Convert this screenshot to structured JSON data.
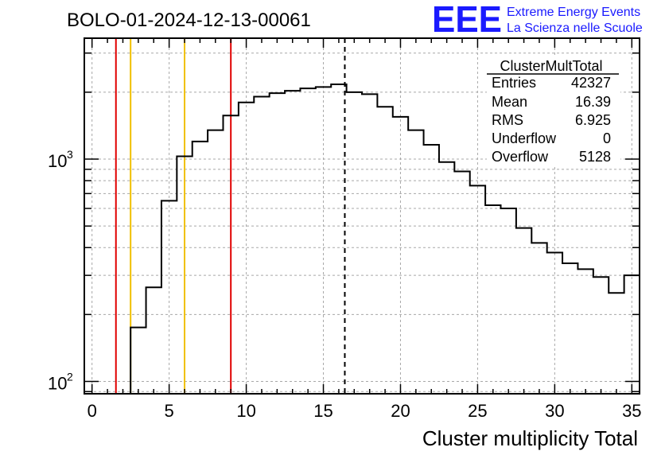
{
  "header": {
    "run_title": "BOLO-01-2024-12-13-00061",
    "logo_text": "EEE",
    "logo_line1": "Extreme Energy Events",
    "logo_line2": "La Scienza nelle Scuole",
    "logo_color": "#1a1aff"
  },
  "stats_box": {
    "title": "ClusterMultTotal",
    "rows": [
      {
        "label": "Entries",
        "value": "42327"
      },
      {
        "label": "Mean",
        "value": "16.39"
      },
      {
        "label": "RMS",
        "value": "6.925"
      },
      {
        "label": "Underflow",
        "value": "0"
      },
      {
        "label": "Overflow",
        "value": "5128"
      }
    ]
  },
  "chart_data": {
    "type": "histogram",
    "xlabel": "Cluster multiplicity Total",
    "ylabel": "",
    "xlim": [
      -0.5,
      35.5
    ],
    "ylim": [
      88,
      3500
    ],
    "y_scale": "log",
    "grid": true,
    "x_ticks": [
      0,
      5,
      10,
      15,
      20,
      25,
      30,
      35
    ],
    "x_tick_labels": [
      "0",
      "5",
      "10",
      "15",
      "20",
      "25",
      "30",
      "35"
    ],
    "y_tick_labels": [
      {
        "value": 100,
        "base": "10",
        "exp": "2"
      },
      {
        "value": 1000,
        "base": "10",
        "exp": "3"
      }
    ],
    "bin_edges": [
      -0.5,
      0.5,
      1.5,
      2.5,
      3.5,
      4.5,
      5.5,
      6.5,
      7.5,
      8.5,
      9.5,
      10.5,
      11.5,
      12.5,
      13.5,
      14.5,
      15.5,
      16.5,
      17.5,
      18.5,
      19.5,
      20.5,
      21.5,
      22.5,
      23.5,
      24.5,
      25.5,
      26.5,
      27.5,
      28.5,
      29.5,
      30.5,
      31.5,
      32.5,
      33.5,
      34.5,
      35.5
    ],
    "counts": [
      0,
      0,
      0,
      175,
      265,
      650,
      1030,
      1200,
      1350,
      1570,
      1800,
      1910,
      1980,
      2030,
      2080,
      2110,
      2170,
      2000,
      1960,
      1720,
      1550,
      1350,
      1160,
      970,
      880,
      760,
      620,
      600,
      490,
      420,
      380,
      340,
      320,
      295,
      250,
      300
    ],
    "line_color": "#000000",
    "mean_line": {
      "x": 16.39,
      "style": "dashed",
      "color": "#000000"
    },
    "vertical_lines": [
      {
        "x": 1.55,
        "color": "#e00000"
      },
      {
        "x": 2.5,
        "color": "#f0c000"
      },
      {
        "x": 6.0,
        "color": "#f0c000"
      },
      {
        "x": 9.0,
        "color": "#e00000"
      }
    ]
  }
}
